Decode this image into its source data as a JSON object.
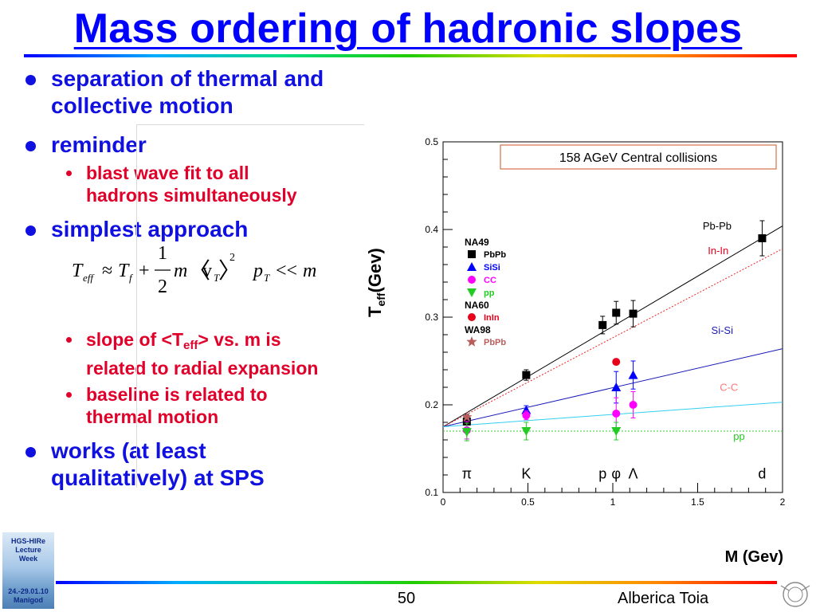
{
  "slide": {
    "title": "Mass ordering of hadronic slopes",
    "bullets": {
      "b1": "separation of thermal and collective motion",
      "b2": "reminder",
      "b2_sub1_l1": "blast wave fit to all",
      "b2_sub1_l2": "hadrons simultaneously",
      "b3": "simplest approach",
      "b3_sub1_a": "slope of <T",
      "b3_sub1_sub": "eff",
      "b3_sub1_b": "> vs. m is",
      "b3_sub1_l2": "related to radial expansion",
      "b3_sub2_l1": "baseline is related to",
      "b3_sub2_l2": "thermal motion",
      "b4_l1": "works (at least",
      "b4_l2": "qualitatively) at SPS"
    },
    "formula": {
      "T": "T",
      "eff": "eff",
      "approx": "≈",
      "Tf": "T",
      "f": "f",
      "plus": "+",
      "num": "1",
      "den": "2",
      "m1": "m",
      "langle": "〈",
      "v": "v",
      "vT": "T",
      "rangle": "〉",
      "sq": "2",
      "pT": "p",
      "pTsub": "T",
      "ll": "<<",
      "m2": "m"
    },
    "footer": {
      "page": "50",
      "author": "Alberica Toia"
    },
    "badge": {
      "l1": "HGS-HIRe",
      "l2": "Lecture",
      "l3": "Week",
      "l4": "24.-29.01.10",
      "l5": "Manigod"
    },
    "colors": {
      "title": "#0000ff",
      "bullet1": "#1010e0",
      "bullet2": "#e0002a"
    }
  },
  "chart_data": {
    "type": "scatter",
    "title": "158 AGeV Central collisions",
    "ylabel": "T",
    "ylabel_sub": "eff",
    "ylabel_unit": "(Gev)",
    "xlabel": "M (Gev)",
    "xlim": [
      0,
      2
    ],
    "ylim": [
      0.1,
      0.5
    ],
    "xticks": [
      "0",
      "0.5",
      "1",
      "1.5",
      "2"
    ],
    "yticks": [
      "0.1",
      "0.2",
      "0.3",
      "0.4",
      "0.5"
    ],
    "particles": [
      {
        "label": "π",
        "x": 0.14
      },
      {
        "label": "K",
        "x": 0.49
      },
      {
        "label": "p",
        "x": 0.94
      },
      {
        "label": "φ",
        "x": 1.02
      },
      {
        "label": "Λ",
        "x": 1.12
      },
      {
        "label": "d",
        "x": 1.88
      }
    ],
    "legend": {
      "groups": [
        {
          "name": "NA49",
          "entries": [
            {
              "label": "PbPb",
              "marker": "square",
              "color": "#000000"
            },
            {
              "label": "SiSi",
              "marker": "triangle-up",
              "color": "#0000ff"
            },
            {
              "label": "CC",
              "marker": "circle",
              "color": "#ff00ff"
            },
            {
              "label": "pp",
              "marker": "triangle-down",
              "color": "#22cc22"
            }
          ]
        },
        {
          "name": "NA60",
          "entries": [
            {
              "label": "InIn",
              "marker": "circle",
              "color": "#e8001a"
            }
          ]
        },
        {
          "name": "WA98",
          "entries": [
            {
              "label": "PbPb",
              "marker": "star",
              "color": "#b85c5c"
            }
          ]
        }
      ]
    },
    "series": [
      {
        "name": "PbPb",
        "marker": "square",
        "color": "#000000",
        "points": [
          [
            0.14,
            0.181,
            0.008
          ],
          [
            0.49,
            0.234,
            0.006
          ],
          [
            0.94,
            0.291,
            0.01
          ],
          [
            1.02,
            0.305,
            0.013
          ],
          [
            1.12,
            0.304,
            0.015
          ],
          [
            1.88,
            0.39,
            0.02
          ]
        ]
      },
      {
        "name": "SiSi",
        "marker": "triangle-up",
        "color": "#0000ff",
        "points": [
          [
            0.49,
            0.194,
            0.005
          ],
          [
            1.02,
            0.22,
            0.018
          ],
          [
            1.12,
            0.234,
            0.016
          ]
        ]
      },
      {
        "name": "CC",
        "marker": "circle",
        "color": "#ff00ff",
        "points": [
          [
            0.14,
            0.171,
            0.01
          ],
          [
            0.49,
            0.188,
            0.005
          ],
          [
            1.02,
            0.19,
            0.018
          ],
          [
            1.12,
            0.2,
            0.015
          ]
        ]
      },
      {
        "name": "pp",
        "marker": "triangle-down",
        "color": "#22cc22",
        "points": [
          [
            0.14,
            0.169,
            0.01
          ],
          [
            0.49,
            0.17,
            0.01
          ],
          [
            1.02,
            0.17,
            0.01
          ]
        ]
      },
      {
        "name": "InIn",
        "marker": "circle",
        "color": "#e8001a",
        "points": [
          [
            1.02,
            0.249,
            0
          ]
        ]
      },
      {
        "name": "WA98 PbPb",
        "marker": "star",
        "color": "#b85c5c",
        "points": [
          [
            0.14,
            0.186,
            0
          ]
        ]
      }
    ],
    "fit_lines": [
      {
        "name": "Pb-Pb",
        "color": "#000000",
        "style": "solid",
        "x0": 0,
        "y0": 0.175,
        "x1": 2,
        "y1": 0.404
      },
      {
        "name": "In-In",
        "color": "#ee2222",
        "style": "dotted",
        "x0": 0,
        "y0": 0.175,
        "x1": 2,
        "y1": 0.378
      },
      {
        "name": "Si-Si",
        "color": "#1a1ab8",
        "style": "solid",
        "x0": 0,
        "y0": 0.175,
        "x1": 2,
        "y1": 0.264
      },
      {
        "name": "C-C",
        "color": "#33d0f0",
        "style": "solid",
        "x0": 0,
        "y0": 0.175,
        "x1": 2,
        "y1": 0.203
      },
      {
        "name": "pp",
        "color": "#33cc33",
        "style": "dotted",
        "x0": 0,
        "y0": 0.17,
        "x1": 2,
        "y1": 0.17
      }
    ],
    "line_labels": [
      {
        "text": "Pb-Pb",
        "x": 1.53,
        "y": 0.4,
        "color": "#000000"
      },
      {
        "text": "In-In",
        "x": 1.56,
        "y": 0.372,
        "color": "#e8001a"
      },
      {
        "text": "Si-Si",
        "x": 1.58,
        "y": 0.281,
        "color": "#1a1ab8"
      },
      {
        "text": "C-C",
        "x": 1.63,
        "y": 0.216,
        "color": "#ff7777"
      },
      {
        "text": "pp",
        "x": 1.71,
        "y": 0.16,
        "color": "#22cc22"
      }
    ]
  }
}
